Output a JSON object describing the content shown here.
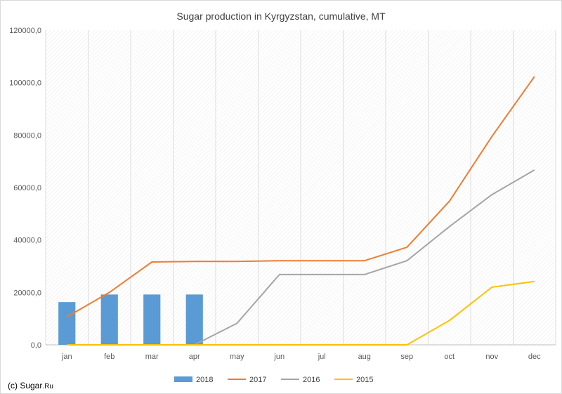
{
  "chart_data": {
    "type": "bar",
    "title": "Sugar production in Kyrgyzstan, cumulative, MT",
    "xlabel": "",
    "ylabel": "",
    "categories": [
      "jan",
      "feb",
      "mar",
      "apr",
      "may",
      "jun",
      "jul",
      "aug",
      "sep",
      "oct",
      "nov",
      "dec"
    ],
    "ylim": [
      0,
      120000
    ],
    "yticks": [
      0,
      20000,
      40000,
      60000,
      80000,
      100000,
      120000
    ],
    "ytick_labels": [
      "0,0",
      "20000,0",
      "40000,0",
      "60000,0",
      "80000,0",
      "100000,0",
      "120000,0"
    ],
    "grid": "vertical",
    "legend_position": "bottom",
    "series": [
      {
        "name": "2018",
        "kind": "bar",
        "color": "#5b9bd5",
        "values": [
          16300,
          19200,
          19200,
          19200,
          null,
          null,
          null,
          null,
          null,
          null,
          null,
          null
        ]
      },
      {
        "name": "2017",
        "kind": "line",
        "color": "#ed7d31",
        "values": [
          10700,
          20000,
          31600,
          31800,
          31800,
          32100,
          32100,
          32100,
          37200,
          54800,
          79500,
          102300
        ]
      },
      {
        "name": "2016",
        "kind": "line",
        "color": "#a5a5a5",
        "values": [
          null,
          null,
          null,
          0,
          8200,
          26800,
          26800,
          26800,
          32100,
          45100,
          57300,
          66700
        ]
      },
      {
        "name": "2015",
        "kind": "line",
        "color": "#ffc000",
        "values": [
          0,
          0,
          0,
          0,
          0,
          0,
          0,
          0,
          0,
          9300,
          22000,
          24200
        ]
      }
    ]
  },
  "credit": {
    "prefix": "(c) Sugar",
    "suffix": ".Ru"
  }
}
